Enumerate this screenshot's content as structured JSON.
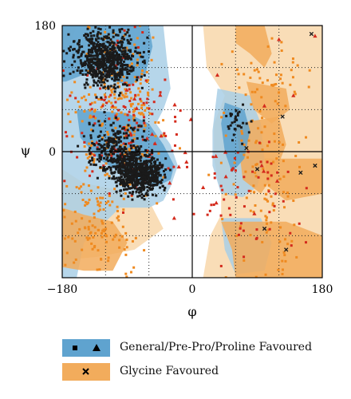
{
  "colors": {
    "general_favoured": "#5fa3cf",
    "general_allowed": "#a9cfe6",
    "glycine_favoured": "#f2ac5c",
    "glycine_allowed": "#f9dbb3",
    "general_points": "#1a1a1a",
    "outlier_points": "#d42a1c",
    "glycine_points": "#ef8a20",
    "axis": "#000000",
    "grid": "#222222"
  },
  "chart_data": {
    "type": "scatter",
    "xlabel": "φ",
    "ylabel": "ψ",
    "xlim": [
      -180,
      180
    ],
    "ylim": [
      -180,
      180
    ],
    "x_ticks": [
      "−180",
      "0",
      "180"
    ],
    "y_ticks": [
      "180",
      "0"
    ],
    "grid_lines_dotted": [
      -120,
      -60,
      60,
      120
    ],
    "center_axes": true,
    "legend": {
      "placement": "bottom",
      "entries": [
        {
          "label": "General/Pre-Pro/Proline Favoured",
          "markers": [
            "square",
            "triangle"
          ],
          "marker_colors": [
            "black",
            "black"
          ],
          "swatch": "general_favoured"
        },
        {
          "label": "Glycine Favoured",
          "markers": [
            "cross"
          ],
          "marker_colors": [
            "black"
          ],
          "swatch": "glycine_favoured"
        }
      ]
    },
    "regions": {
      "general_allowed": [
        [
          [
            -180,
            180
          ],
          [
            -40,
            180
          ],
          [
            -35,
            130
          ],
          [
            -30,
            90
          ],
          [
            -40,
            60
          ],
          [
            -50,
            40
          ],
          [
            -30,
            10
          ],
          [
            -20,
            -20
          ],
          [
            -30,
            -50
          ],
          [
            -40,
            -70
          ],
          [
            -60,
            -80
          ],
          [
            -100,
            -80
          ],
          [
            -120,
            -100
          ],
          [
            -150,
            -130
          ],
          [
            -160,
            -180
          ],
          [
            -180,
            -180
          ]
        ],
        [
          [
            35,
            90
          ],
          [
            80,
            80
          ],
          [
            95,
            40
          ],
          [
            100,
            -10
          ],
          [
            90,
            -50
          ],
          [
            70,
            -65
          ],
          [
            40,
            -60
          ],
          [
            28,
            -20
          ],
          [
            28,
            30
          ]
        ],
        [
          [
            40,
            -95
          ],
          [
            95,
            -95
          ],
          [
            110,
            -130
          ],
          [
            100,
            -170
          ],
          [
            60,
            -175
          ],
          [
            45,
            -140
          ]
        ]
      ],
      "general_favoured": [
        [
          [
            -180,
            180
          ],
          [
            -60,
            180
          ],
          [
            -55,
            150
          ],
          [
            -65,
            110
          ],
          [
            -85,
            95
          ],
          [
            -110,
            100
          ],
          [
            -130,
            120
          ],
          [
            -150,
            110
          ],
          [
            -175,
            100
          ],
          [
            -180,
            100
          ]
        ],
        [
          [
            -160,
            60
          ],
          [
            -90,
            55
          ],
          [
            -60,
            40
          ],
          [
            -40,
            10
          ],
          [
            -25,
            -20
          ],
          [
            -30,
            -40
          ],
          [
            -50,
            -50
          ],
          [
            -75,
            -45
          ],
          [
            -100,
            -30
          ],
          [
            -130,
            -10
          ],
          [
            -155,
            20
          ]
        ],
        [
          [
            45,
            70
          ],
          [
            72,
            60
          ],
          [
            80,
            30
          ],
          [
            72,
            -10
          ],
          [
            55,
            -30
          ],
          [
            45,
            0
          ],
          [
            40,
            40
          ]
        ]
      ],
      "glycine_allowed": [
        [
          [
            -180,
            -25
          ],
          [
            -150,
            -45
          ],
          [
            -100,
            -55
          ],
          [
            -60,
            -70
          ],
          [
            -40,
            -110
          ],
          [
            -80,
            -140
          ],
          [
            -130,
            -150
          ],
          [
            -180,
            -155
          ]
        ],
        [
          [
            15,
            180
          ],
          [
            180,
            180
          ],
          [
            180,
            -180
          ],
          [
            15,
            -180
          ],
          [
            25,
            -120
          ],
          [
            40,
            -90
          ],
          [
            40,
            -60
          ],
          [
            30,
            -10
          ],
          [
            30,
            40
          ],
          [
            45,
            80
          ],
          [
            20,
            120
          ]
        ],
        [
          [
            -180,
            180
          ],
          [
            -160,
            180
          ],
          [
            -170,
            150
          ],
          [
            -180,
            140
          ]
        ]
      ],
      "glycine_favoured": [
        [
          [
            60,
            180
          ],
          [
            100,
            180
          ],
          [
            110,
            140
          ],
          [
            100,
            120
          ],
          [
            80,
            140
          ],
          [
            60,
            155
          ]
        ],
        [
          [
            75,
            100
          ],
          [
            130,
            90
          ],
          [
            135,
            60
          ],
          [
            110,
            40
          ],
          [
            85,
            60
          ]
        ],
        [
          [
            60,
            40
          ],
          [
            120,
            50
          ],
          [
            130,
            10
          ],
          [
            115,
            -30
          ],
          [
            95,
            -60
          ],
          [
            70,
            -40
          ],
          [
            65,
            0
          ]
        ],
        [
          [
            100,
            -10
          ],
          [
            180,
            -10
          ],
          [
            180,
            -60
          ],
          [
            130,
            -70
          ],
          [
            105,
            -50
          ]
        ],
        [
          [
            40,
            -100
          ],
          [
            130,
            -100
          ],
          [
            180,
            -120
          ],
          [
            180,
            -180
          ],
          [
            60,
            -180
          ],
          [
            55,
            -140
          ]
        ],
        [
          [
            -180,
            -80
          ],
          [
            -150,
            -90
          ],
          [
            -110,
            -100
          ],
          [
            -90,
            -130
          ],
          [
            -110,
            -170
          ],
          [
            -150,
            -170
          ],
          [
            -180,
            -165
          ]
        ]
      ]
    },
    "clusters": [
      {
        "marker": "square",
        "color": "general_points",
        "count": 650,
        "cx": -118,
        "cy": 132,
        "sx": 32,
        "sy": 28
      },
      {
        "marker": "square",
        "color": "general_points",
        "count": 600,
        "cx": -72,
        "cy": -32,
        "sx": 22,
        "sy": 20
      },
      {
        "marker": "square",
        "color": "general_points",
        "count": 260,
        "cx": -105,
        "cy": 5,
        "sx": 28,
        "sy": 30
      },
      {
        "marker": "square",
        "color": "general_points",
        "count": 30,
        "cx": 60,
        "cy": 40,
        "sx": 12,
        "sy": 18
      },
      {
        "marker": "square",
        "color": "glycine_points",
        "count": 260,
        "cx": -105,
        "cy": 60,
        "sx": 45,
        "sy": 80
      },
      {
        "marker": "square",
        "color": "glycine_points",
        "count": 120,
        "cx": -130,
        "cy": -100,
        "sx": 35,
        "sy": 45
      },
      {
        "marker": "square",
        "color": "glycine_points",
        "count": 110,
        "cx": 95,
        "cy": -40,
        "sx": 45,
        "sy": 95
      },
      {
        "marker": "square",
        "color": "glycine_points",
        "count": 40,
        "cx": 110,
        "cy": 110,
        "sx": 45,
        "sy": 40
      },
      {
        "marker": "square",
        "color": "outlier_points",
        "count": 120,
        "cx": -90,
        "cy": 40,
        "sx": 50,
        "sy": 80
      },
      {
        "marker": "square",
        "color": "outlier_points",
        "count": 60,
        "cx": 80,
        "cy": -60,
        "sx": 55,
        "sy": 70
      },
      {
        "marker": "triangle",
        "color": "outlier_points",
        "count": 25,
        "cx": -60,
        "cy": 20,
        "sx": 45,
        "sy": 70
      },
      {
        "marker": "triangle",
        "color": "outlier_points",
        "count": 10,
        "cx": 60,
        "cy": -10,
        "sx": 60,
        "sy": 80
      }
    ],
    "notable_points": [
      {
        "marker": "cross",
        "color": "general_points",
        "x": 165,
        "y": 168
      },
      {
        "marker": "cross",
        "color": "general_points",
        "x": 130,
        "y": -140
      },
      {
        "marker": "cross",
        "color": "general_points",
        "x": 150,
        "y": -30
      },
      {
        "marker": "cross",
        "color": "general_points",
        "x": 90,
        "y": -25
      },
      {
        "marker": "cross",
        "color": "general_points",
        "x": 75,
        "y": 5
      },
      {
        "marker": "cross",
        "color": "general_points",
        "x": 125,
        "y": 50
      },
      {
        "marker": "cross",
        "color": "general_points",
        "x": 170,
        "y": -20
      },
      {
        "marker": "cross",
        "color": "general_points",
        "x": 100,
        "y": -110
      },
      {
        "marker": "triangle",
        "color": "outlier_points",
        "x": 120,
        "y": 160
      },
      {
        "marker": "triangle",
        "color": "outlier_points",
        "x": 170,
        "y": 165
      },
      {
        "marker": "triangle",
        "color": "outlier_points",
        "x": 140,
        "y": 80
      },
      {
        "marker": "triangle",
        "color": "outlier_points",
        "x": -25,
        "y": -95
      }
    ]
  }
}
